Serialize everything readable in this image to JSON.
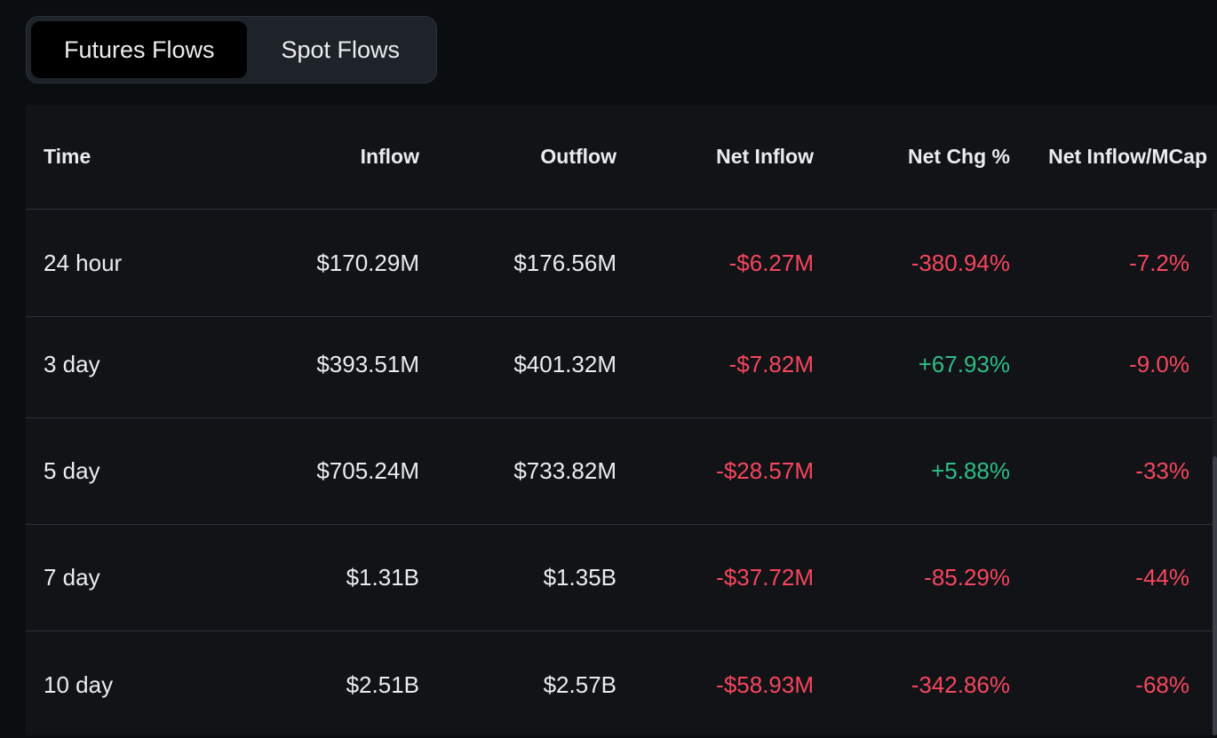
{
  "tabs": [
    {
      "label": "Futures Flows",
      "active": true
    },
    {
      "label": "Spot Flows",
      "active": false
    }
  ],
  "table": {
    "columns": [
      "Time",
      "Inflow",
      "Outflow",
      "Net Inflow",
      "Net Chg %",
      "Net Inflow/MCap"
    ],
    "rows": [
      {
        "time": "24 hour",
        "inflow": "$170.29M",
        "outflow": "$176.56M",
        "net_inflow": "-$6.27M",
        "net_chg": "-380.94%",
        "net_mcap": "-7.2%"
      },
      {
        "time": "3 day",
        "inflow": "$393.51M",
        "outflow": "$401.32M",
        "net_inflow": "-$7.82M",
        "net_chg": "+67.93%",
        "net_mcap": "-9.0%"
      },
      {
        "time": "5 day",
        "inflow": "$705.24M",
        "outflow": "$733.82M",
        "net_inflow": "-$28.57M",
        "net_chg": "+5.88%",
        "net_mcap": "-33%"
      },
      {
        "time": "7 day",
        "inflow": "$1.31B",
        "outflow": "$1.35B",
        "net_inflow": "-$37.72M",
        "net_chg": "-85.29%",
        "net_mcap": "-44%"
      },
      {
        "time": "10 day",
        "inflow": "$2.51B",
        "outflow": "$2.57B",
        "net_inflow": "-$58.93M",
        "net_chg": "-342.86%",
        "net_mcap": "-68%"
      }
    ]
  },
  "colors": {
    "negative": "#f6465d",
    "positive": "#2ebd85",
    "background": "#0b0e11",
    "table_bg": "#111317"
  }
}
